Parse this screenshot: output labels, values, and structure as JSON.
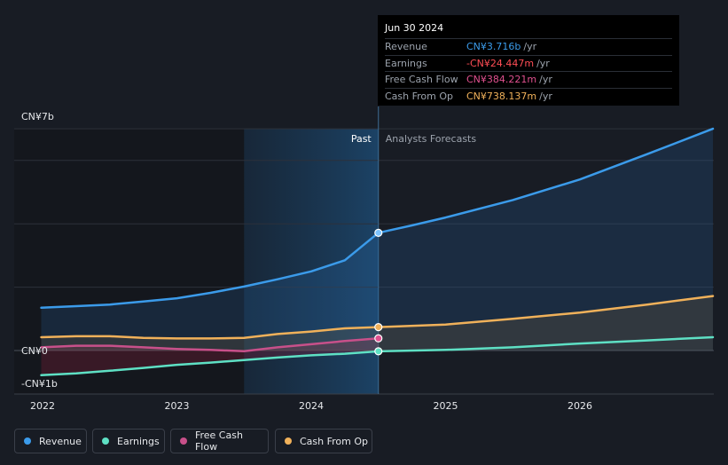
{
  "colors": {
    "revenue": "#3b9bea",
    "earnings": "#5ee0c4",
    "free_cash_flow": "#c8508a",
    "cash_from_op": "#f0b15a",
    "axis_text": "#e6e8eb",
    "grid": "#2c313b"
  },
  "tooltip": {
    "date": "Jun 30 2024",
    "rows": [
      {
        "label": "Revenue",
        "value": "CN¥3.716b",
        "unit": "/yr",
        "color": "#3b9bea"
      },
      {
        "label": "Earnings",
        "value": "-CN¥24.447m",
        "unit": "/yr",
        "color": "#ff4d55"
      },
      {
        "label": "Free Cash Flow",
        "value": "CN¥384.221m",
        "unit": "/yr",
        "color": "#e0508f"
      },
      {
        "label": "Cash From Op",
        "value": "CN¥738.137m",
        "unit": "/yr",
        "color": "#f0b15a"
      }
    ]
  },
  "legend": [
    {
      "key": "revenue",
      "label": "Revenue",
      "color": "#3b9bea"
    },
    {
      "key": "earnings",
      "label": "Earnings",
      "color": "#5ee0c4"
    },
    {
      "key": "free_cash_flow",
      "label": "Free Cash Flow",
      "color": "#c8508a"
    },
    {
      "key": "cash_from_op",
      "label": "Cash From Op",
      "color": "#f0b15a"
    }
  ],
  "chart_data": {
    "type": "line",
    "title": "",
    "xlabel": "",
    "ylabel": "",
    "unit": "CN¥ billions",
    "xlim": [
      2021.8,
      2026.99
    ],
    "ylim": [
      -1.3,
      7.0
    ],
    "y_tick_labels": [
      {
        "value": 7,
        "label": "CN¥7b"
      },
      {
        "value": 0,
        "label": "CN¥0"
      },
      {
        "value": -1,
        "label": "-CN¥1b"
      }
    ],
    "x_ticks": [
      {
        "value": 2022,
        "label": "2022"
      },
      {
        "value": 2023,
        "label": "2023"
      },
      {
        "value": 2024,
        "label": "2024"
      },
      {
        "value": 2025,
        "label": "2025"
      },
      {
        "value": 2026,
        "label": "2026"
      }
    ],
    "past_label": "Past",
    "forecast_label": "Analysts Forecasts",
    "past_start": 2023.5,
    "divider_x": 2024.5,
    "highlight_x": 2024.5,
    "series": [
      {
        "name": "Revenue",
        "key": "revenue",
        "points": [
          [
            2021.99,
            1.35
          ],
          [
            2022.25,
            1.4
          ],
          [
            2022.5,
            1.45
          ],
          [
            2022.75,
            1.55
          ],
          [
            2023.0,
            1.65
          ],
          [
            2023.25,
            1.82
          ],
          [
            2023.5,
            2.02
          ],
          [
            2023.75,
            2.25
          ],
          [
            2024.0,
            2.5
          ],
          [
            2024.25,
            2.85
          ],
          [
            2024.5,
            3.716
          ],
          [
            2024.75,
            3.95
          ],
          [
            2025.0,
            4.2
          ],
          [
            2025.5,
            4.75
          ],
          [
            2026.0,
            5.4
          ],
          [
            2026.5,
            6.2
          ],
          [
            2026.99,
            7.0
          ]
        ]
      },
      {
        "name": "Earnings",
        "key": "earnings",
        "points": [
          [
            2021.99,
            -0.78
          ],
          [
            2022.25,
            -0.72
          ],
          [
            2022.5,
            -0.64
          ],
          [
            2022.75,
            -0.55
          ],
          [
            2023.0,
            -0.45
          ],
          [
            2023.25,
            -0.38
          ],
          [
            2023.5,
            -0.3
          ],
          [
            2023.75,
            -0.22
          ],
          [
            2024.0,
            -0.15
          ],
          [
            2024.25,
            -0.1
          ],
          [
            2024.5,
            -0.024447
          ],
          [
            2025.0,
            0.02
          ],
          [
            2025.5,
            0.1
          ],
          [
            2026.0,
            0.22
          ],
          [
            2026.5,
            0.32
          ],
          [
            2026.99,
            0.42
          ]
        ]
      },
      {
        "name": "Free Cash Flow",
        "key": "free_cash_flow",
        "points": [
          [
            2021.99,
            0.1
          ],
          [
            2022.25,
            0.15
          ],
          [
            2022.5,
            0.15
          ],
          [
            2022.75,
            0.1
          ],
          [
            2023.0,
            0.05
          ],
          [
            2023.25,
            0.02
          ],
          [
            2023.5,
            -0.02
          ],
          [
            2023.75,
            0.1
          ],
          [
            2024.0,
            0.2
          ],
          [
            2024.25,
            0.3
          ],
          [
            2024.5,
            0.384221
          ]
        ]
      },
      {
        "name": "Cash From Op",
        "key": "cash_from_op",
        "points": [
          [
            2021.99,
            0.42
          ],
          [
            2022.25,
            0.45
          ],
          [
            2022.5,
            0.45
          ],
          [
            2022.75,
            0.4
          ],
          [
            2023.0,
            0.38
          ],
          [
            2023.25,
            0.38
          ],
          [
            2023.5,
            0.4
          ],
          [
            2023.75,
            0.52
          ],
          [
            2024.0,
            0.6
          ],
          [
            2024.25,
            0.7
          ],
          [
            2024.5,
            0.738137
          ],
          [
            2025.0,
            0.82
          ],
          [
            2025.5,
            1.0
          ],
          [
            2026.0,
            1.2
          ],
          [
            2026.5,
            1.45
          ],
          [
            2026.99,
            1.72
          ]
        ]
      }
    ]
  }
}
